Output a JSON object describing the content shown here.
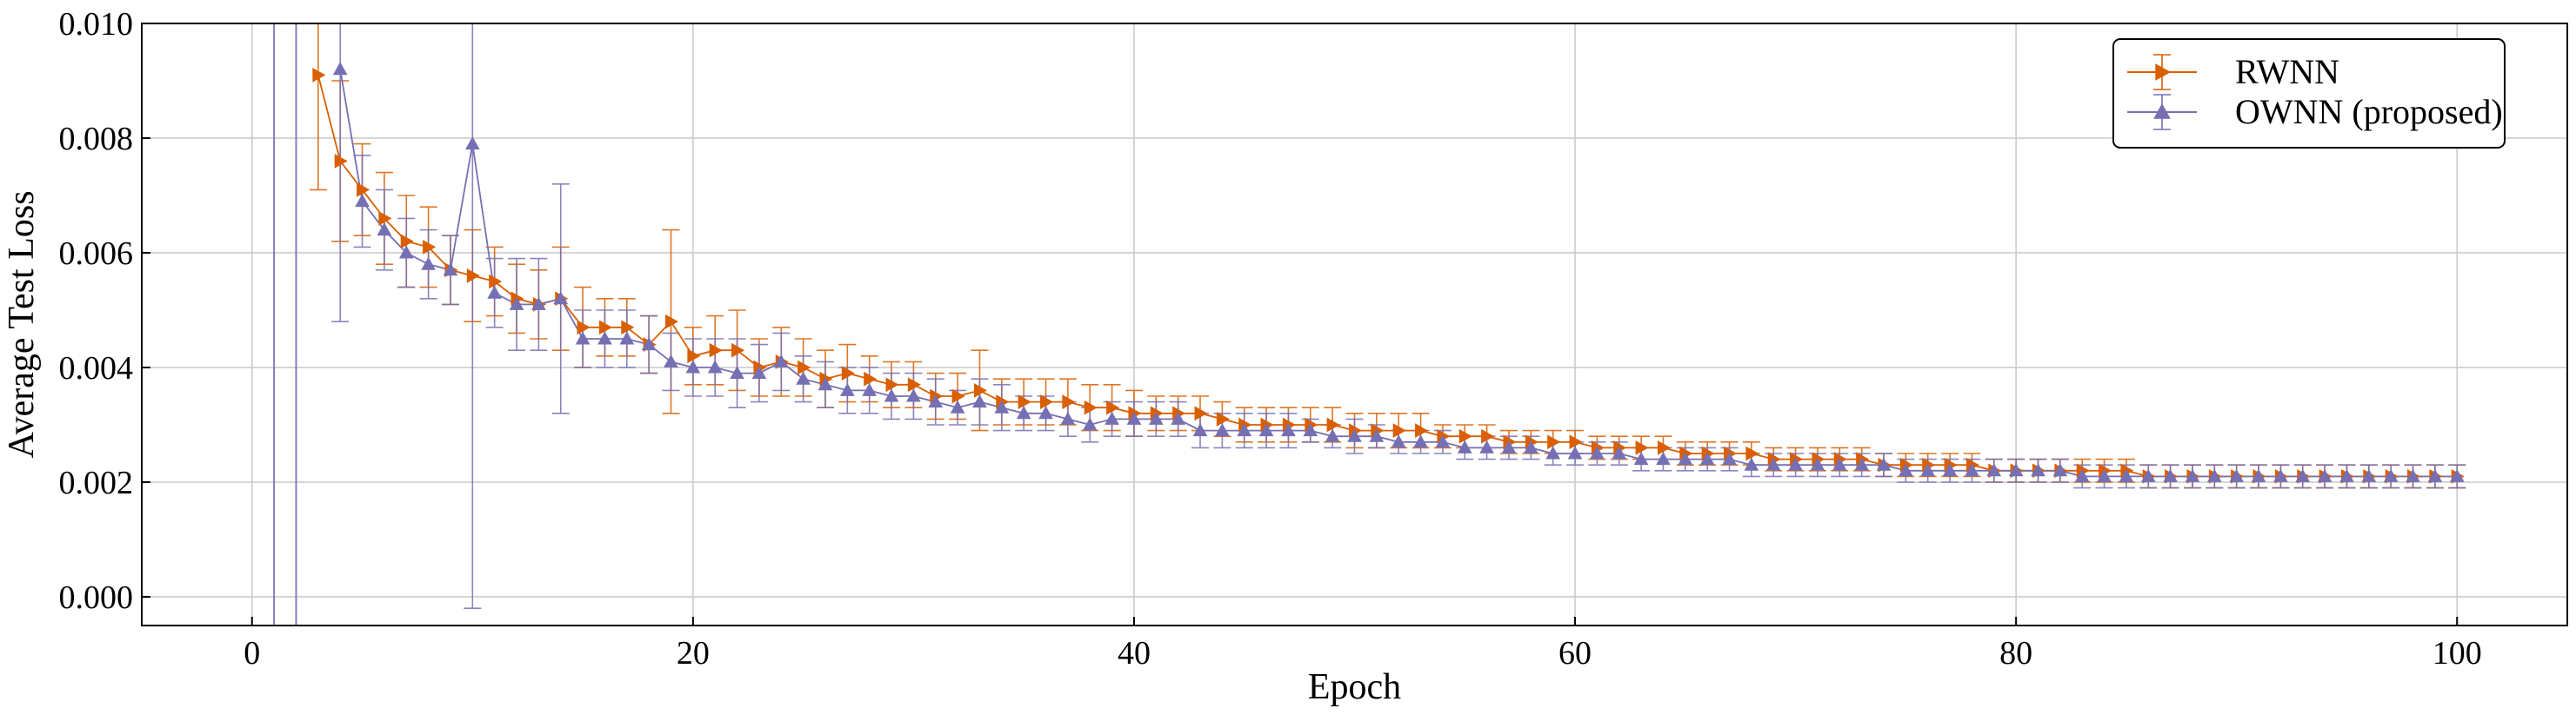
{
  "chart_data": {
    "type": "line",
    "xlabel": "Epoch",
    "ylabel": "Average Test Loss",
    "xlim": [
      -5,
      105
    ],
    "ylim": [
      -0.0005,
      0.01
    ],
    "xticks": [
      0,
      20,
      40,
      60,
      80,
      100
    ],
    "xtick_labels": [
      "0",
      "20",
      "40",
      "60",
      "80",
      "100"
    ],
    "yticks": [
      0.0,
      0.002,
      0.004,
      0.006,
      0.008,
      0.01
    ],
    "ytick_labels": [
      "0.000",
      "0.002",
      "0.004",
      "0.006",
      "0.008",
      "0.010"
    ],
    "grid": true,
    "legend_position": "top-right",
    "series": [
      {
        "name": "RWNN",
        "color": "#d95f02",
        "marker": "triangle-right",
        "x": [
          3,
          4,
          5,
          6,
          7,
          8,
          9,
          10,
          11,
          12,
          13,
          14,
          15,
          16,
          17,
          18,
          19,
          20,
          21,
          22,
          23,
          24,
          25,
          26,
          27,
          28,
          29,
          30,
          31,
          32,
          33,
          34,
          35,
          36,
          37,
          38,
          39,
          40,
          41,
          42,
          43,
          44,
          45,
          46,
          47,
          48,
          49,
          50,
          51,
          52,
          53,
          54,
          55,
          56,
          57,
          58,
          59,
          60,
          61,
          62,
          63,
          64,
          65,
          66,
          67,
          68,
          69,
          70,
          71,
          72,
          73,
          74,
          75,
          76,
          77,
          78,
          79,
          80,
          81,
          82,
          83,
          84,
          85,
          86,
          87,
          88,
          89,
          90,
          91,
          92,
          93,
          94,
          95,
          96,
          97,
          98,
          99,
          100
        ],
        "y": [
          0.0091,
          0.0076,
          0.0071,
          0.0066,
          0.0062,
          0.0061,
          0.0057,
          0.0056,
          0.0055,
          0.0052,
          0.0051,
          0.0052,
          0.0047,
          0.0047,
          0.0047,
          0.0044,
          0.0048,
          0.0042,
          0.0043,
          0.0043,
          0.004,
          0.0041,
          0.004,
          0.0038,
          0.0039,
          0.0038,
          0.0037,
          0.0037,
          0.0035,
          0.0035,
          0.0036,
          0.0034,
          0.0034,
          0.0034,
          0.0034,
          0.0033,
          0.0033,
          0.0032,
          0.0032,
          0.0032,
          0.0032,
          0.0031,
          0.003,
          0.003,
          0.003,
          0.003,
          0.003,
          0.0029,
          0.0029,
          0.0029,
          0.0029,
          0.0028,
          0.0028,
          0.0028,
          0.0027,
          0.0027,
          0.0027,
          0.0027,
          0.0026,
          0.0026,
          0.0026,
          0.0026,
          0.0025,
          0.0025,
          0.0025,
          0.0025,
          0.0024,
          0.0024,
          0.0024,
          0.0024,
          0.0024,
          0.0023,
          0.0023,
          0.0023,
          0.0023,
          0.0023,
          0.0022,
          0.0022,
          0.0022,
          0.0022,
          0.0022,
          0.0022,
          0.0022,
          0.0021,
          0.0021,
          0.0021,
          0.0021,
          0.0021,
          0.0021,
          0.0021,
          0.0021,
          0.0021,
          0.0021,
          0.0021,
          0.0021,
          0.0021,
          0.0021,
          0.0021
        ],
        "err": [
          0.002,
          0.0014,
          0.0008,
          0.0008,
          0.0008,
          0.0007,
          0.0006,
          0.0008,
          0.0006,
          0.0006,
          0.0006,
          0.0009,
          0.0007,
          0.0005,
          0.0005,
          0.0005,
          0.0016,
          0.0005,
          0.0006,
          0.0007,
          0.0005,
          0.0006,
          0.0005,
          0.0005,
          0.0005,
          0.0004,
          0.0004,
          0.0004,
          0.0004,
          0.0004,
          0.0007,
          0.0004,
          0.0004,
          0.0004,
          0.0004,
          0.0004,
          0.0004,
          0.0004,
          0.0003,
          0.0003,
          0.0003,
          0.0003,
          0.0003,
          0.0003,
          0.0003,
          0.0003,
          0.0003,
          0.0003,
          0.0003,
          0.0003,
          0.0003,
          0.0002,
          0.0002,
          0.0002,
          0.0002,
          0.0002,
          0.0002,
          0.0002,
          0.0002,
          0.0002,
          0.0002,
          0.0002,
          0.0002,
          0.0002,
          0.0002,
          0.0002,
          0.0002,
          0.0002,
          0.0002,
          0.0002,
          0.0002,
          0.0002,
          0.0002,
          0.0002,
          0.0002,
          0.0002,
          0.0002,
          0.0002,
          0.0002,
          0.0002,
          0.0002,
          0.0002,
          0.0002,
          0.0002,
          0.0002,
          0.0002,
          0.0002,
          0.0002,
          0.0002,
          0.0002,
          0.0002,
          0.0002,
          0.0002,
          0.0002,
          0.0002,
          0.0002,
          0.0002,
          0.0002
        ]
      },
      {
        "name": "OWNN (proposed)",
        "color": "#7570b3",
        "marker": "triangle-up",
        "x": [
          4,
          5,
          6,
          7,
          8,
          9,
          10,
          11,
          12,
          13,
          14,
          15,
          16,
          17,
          18,
          19,
          20,
          21,
          22,
          23,
          24,
          25,
          26,
          27,
          28,
          29,
          30,
          31,
          32,
          33,
          34,
          35,
          36,
          37,
          38,
          39,
          40,
          41,
          42,
          43,
          44,
          45,
          46,
          47,
          48,
          49,
          50,
          51,
          52,
          53,
          54,
          55,
          56,
          57,
          58,
          59,
          60,
          61,
          62,
          63,
          64,
          65,
          66,
          67,
          68,
          69,
          70,
          71,
          72,
          73,
          74,
          75,
          76,
          77,
          78,
          79,
          80,
          81,
          82,
          83,
          84,
          85,
          86,
          87,
          88,
          89,
          90,
          91,
          92,
          93,
          94,
          95,
          96,
          97,
          98,
          99,
          100
        ],
        "y": [
          0.0092,
          0.0069,
          0.0064,
          0.006,
          0.0058,
          0.0057,
          0.0079,
          0.0053,
          0.0051,
          0.0051,
          0.0052,
          0.0045,
          0.0045,
          0.0045,
          0.0044,
          0.0041,
          0.004,
          0.004,
          0.0039,
          0.0039,
          0.0041,
          0.0038,
          0.0037,
          0.0036,
          0.0036,
          0.0035,
          0.0035,
          0.0034,
          0.0033,
          0.0034,
          0.0033,
          0.0032,
          0.0032,
          0.0031,
          0.003,
          0.0031,
          0.0031,
          0.0031,
          0.0031,
          0.0029,
          0.0029,
          0.0029,
          0.0029,
          0.0029,
          0.0029,
          0.0028,
          0.0028,
          0.0028,
          0.0027,
          0.0027,
          0.0027,
          0.0026,
          0.0026,
          0.0026,
          0.0026,
          0.0025,
          0.0025,
          0.0025,
          0.0025,
          0.0024,
          0.0024,
          0.0024,
          0.0024,
          0.0024,
          0.0023,
          0.0023,
          0.0023,
          0.0023,
          0.0023,
          0.0023,
          0.0023,
          0.0022,
          0.0022,
          0.0022,
          0.0022,
          0.0022,
          0.0022,
          0.0022,
          0.0022,
          0.0021,
          0.0021,
          0.0021,
          0.0021,
          0.0021,
          0.0021,
          0.0021,
          0.0021,
          0.0021,
          0.0021,
          0.0021,
          0.0021,
          0.0021,
          0.0021,
          0.0021,
          0.0021,
          0.0021,
          0.0021
        ],
        "err": [
          0.0044,
          0.0008,
          0.0007,
          0.0006,
          0.0006,
          0.0006,
          0.0081,
          0.0006,
          0.0008,
          0.0008,
          0.002,
          0.0005,
          0.0005,
          0.0005,
          0.0005,
          0.0005,
          0.0005,
          0.0005,
          0.0006,
          0.0005,
          0.0005,
          0.0004,
          0.0004,
          0.0004,
          0.0004,
          0.0004,
          0.0004,
          0.0004,
          0.0003,
          0.0004,
          0.0004,
          0.0003,
          0.0003,
          0.0003,
          0.0003,
          0.0003,
          0.0003,
          0.0003,
          0.0003,
          0.0003,
          0.0003,
          0.0003,
          0.0003,
          0.0003,
          0.0002,
          0.0002,
          0.0003,
          0.0002,
          0.0002,
          0.0002,
          0.0002,
          0.0002,
          0.0002,
          0.0002,
          0.0002,
          0.0002,
          0.0002,
          0.0002,
          0.0002,
          0.0002,
          0.0002,
          0.0002,
          0.0002,
          0.0002,
          0.0002,
          0.0002,
          0.0002,
          0.0002,
          0.0002,
          0.0002,
          0.0002,
          0.0002,
          0.0002,
          0.0002,
          0.0002,
          0.0002,
          0.0002,
          0.0002,
          0.0002,
          0.0002,
          0.0002,
          0.0002,
          0.0002,
          0.0002,
          0.0002,
          0.0002,
          0.0002,
          0.0002,
          0.0002,
          0.0002,
          0.0002,
          0.0002,
          0.0002,
          0.0002,
          0.0002,
          0.0002,
          0.0002
        ]
      }
    ],
    "early_error_lines": [
      {
        "series": "OWNN (proposed)",
        "x": 1
      },
      {
        "series": "OWNN (proposed)",
        "x": 2
      }
    ]
  }
}
